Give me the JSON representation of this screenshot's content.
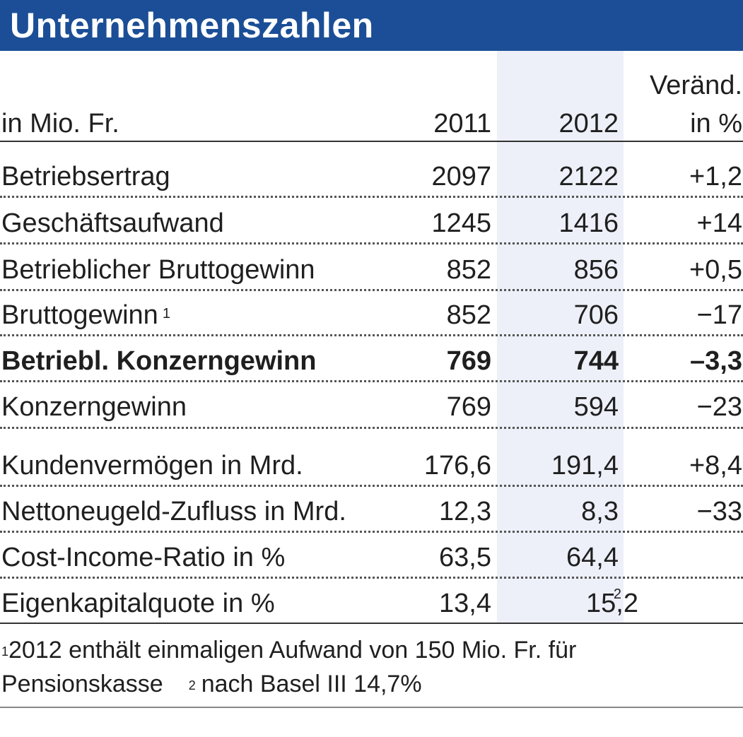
{
  "title": "Unternehmenszahlen",
  "header": {
    "unit": "in Mio. Fr.",
    "col_2011": "2011",
    "col_2012": "2012",
    "change_line1": "Veränd.",
    "change_line2": "in %"
  },
  "rows": [
    {
      "label": "Betriebsertrag",
      "v2011": "2097",
      "v2012": "2122",
      "change": "+1,2"
    },
    {
      "label": "Geschäftsaufwand",
      "v2011": "1245",
      "v2012": "1416",
      "change": "+14"
    },
    {
      "label": "Betrieblicher Bruttogewinn",
      "v2011": "852",
      "v2012": "856",
      "change": "+0,5"
    },
    {
      "label": "Bruttogewinn",
      "label_note": "1",
      "v2011": "852",
      "v2012": "706",
      "change": "−17"
    },
    {
      "label": "Betriebl. Konzerngewinn",
      "v2011": "769",
      "v2012": "744",
      "change": "–3,3"
    },
    {
      "label": "Konzerngewinn",
      "v2011": "769",
      "v2012": "594",
      "change": "−23"
    },
    {
      "label": "Kundenvermögen in Mrd.",
      "v2011": "176,6",
      "v2012": "191,4",
      "change": "+8,4"
    },
    {
      "label": "Nettoneugeld-Zufluss in Mrd.",
      "v2011": "12,3",
      "v2012": "8,3",
      "change": "−33"
    },
    {
      "label": "Cost-Income-Ratio in %",
      "v2011": "63,5",
      "v2012": "64,4",
      "change": ""
    },
    {
      "label": "Eigenkapitalquote in %",
      "v2011": "13,4",
      "v2012": "15,2",
      "v2012_note": "2",
      "change": ""
    }
  ],
  "footnotes": {
    "note1_marker": "1",
    "note1_text_a": "2012 enthält einmaligen Aufwand von 150 Mio. Fr. für",
    "note1_text_b": "Pensionskasse",
    "note2_marker": "2",
    "note2_text": "nach Basel III 14,7%"
  },
  "colors": {
    "header_bg": "#1b4e96",
    "column_shade": "#edf0f8"
  }
}
